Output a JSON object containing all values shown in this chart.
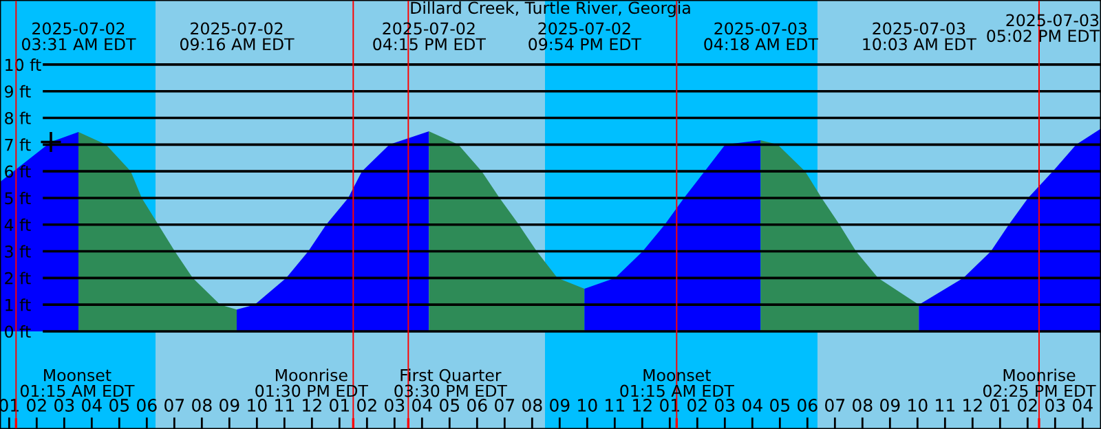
{
  "chart_data": {
    "type": "area",
    "title": "Dillard Creek, Turtle River, Georgia",
    "xlim": [
      "2025-07-02T00:40",
      "2025-07-03T16:40"
    ],
    "ylim": [
      -3.66,
      12.42
    ],
    "yticks": [
      {
        "value": 0,
        "label": "0 ft"
      },
      {
        "value": 1,
        "label": "1 ft"
      },
      {
        "value": 2,
        "label": "2 ft"
      },
      {
        "value": 3,
        "label": "3 ft"
      },
      {
        "value": 4,
        "label": "4 ft"
      },
      {
        "value": 5,
        "label": "5 ft"
      },
      {
        "value": 6,
        "label": "6 ft"
      },
      {
        "value": 7,
        "label": "7 ft"
      },
      {
        "value": 8,
        "label": "8 ft"
      },
      {
        "value": 9,
        "label": "9 ft"
      },
      {
        "value": 10,
        "label": "10 ft"
      }
    ],
    "xticks": [
      {
        "value": "2025-07-02T01:00",
        "label": "01"
      },
      {
        "value": "2025-07-02T02:00",
        "label": "02"
      },
      {
        "value": "2025-07-02T03:00",
        "label": "03"
      },
      {
        "value": "2025-07-02T04:00",
        "label": "04"
      },
      {
        "value": "2025-07-02T05:00",
        "label": "05"
      },
      {
        "value": "2025-07-02T06:00",
        "label": "06"
      },
      {
        "value": "2025-07-02T07:00",
        "label": "07"
      },
      {
        "value": "2025-07-02T08:00",
        "label": "08"
      },
      {
        "value": "2025-07-02T09:00",
        "label": "09"
      },
      {
        "value": "2025-07-02T10:00",
        "label": "10"
      },
      {
        "value": "2025-07-02T11:00",
        "label": "11"
      },
      {
        "value": "2025-07-02T12:00",
        "label": "12"
      },
      {
        "value": "2025-07-02T13:00",
        "label": "01"
      },
      {
        "value": "2025-07-02T14:00",
        "label": "02"
      },
      {
        "value": "2025-07-02T15:00",
        "label": "03"
      },
      {
        "value": "2025-07-02T16:00",
        "label": "04"
      },
      {
        "value": "2025-07-02T17:00",
        "label": "05"
      },
      {
        "value": "2025-07-02T18:00",
        "label": "06"
      },
      {
        "value": "2025-07-02T19:00",
        "label": "07"
      },
      {
        "value": "2025-07-02T20:00",
        "label": "08"
      },
      {
        "value": "2025-07-02T21:00",
        "label": "09"
      },
      {
        "value": "2025-07-02T22:00",
        "label": "10"
      },
      {
        "value": "2025-07-02T23:00",
        "label": "11"
      },
      {
        "value": "2025-07-03T00:00",
        "label": "12"
      },
      {
        "value": "2025-07-03T01:00",
        "label": "01"
      },
      {
        "value": "2025-07-03T02:00",
        "label": "02"
      },
      {
        "value": "2025-07-03T03:00",
        "label": "03"
      },
      {
        "value": "2025-07-03T04:00",
        "label": "04"
      },
      {
        "value": "2025-07-03T05:00",
        "label": "05"
      },
      {
        "value": "2025-07-03T06:00",
        "label": "06"
      },
      {
        "value": "2025-07-03T07:00",
        "label": "07"
      },
      {
        "value": "2025-07-03T08:00",
        "label": "08"
      },
      {
        "value": "2025-07-03T09:00",
        "label": "09"
      },
      {
        "value": "2025-07-03T10:00",
        "label": "10"
      },
      {
        "value": "2025-07-03T11:00",
        "label": "11"
      },
      {
        "value": "2025-07-03T12:00",
        "label": "12"
      },
      {
        "value": "2025-07-03T13:00",
        "label": "01"
      },
      {
        "value": "2025-07-03T14:00",
        "label": "02"
      },
      {
        "value": "2025-07-03T15:00",
        "label": "03"
      },
      {
        "value": "2025-07-03T16:00",
        "label": "04"
      }
    ],
    "grid": "y",
    "bands": [
      {
        "axis": "x",
        "from": "2025-07-02T00:40",
        "to": "2025-07-02T06:19",
        "color": "#00bfff"
      },
      {
        "axis": "x",
        "from": "2025-07-02T06:19",
        "to": "2025-07-02T20:28",
        "color": "#87ceeb"
      },
      {
        "axis": "x",
        "from": "2025-07-02T20:28",
        "to": "2025-07-03T06:22",
        "color": "#00bfff"
      },
      {
        "axis": "x",
        "from": "2025-07-03T06:22",
        "to": "2025-07-03T16:40",
        "color": "#87ceeb"
      }
    ],
    "series": [
      {
        "color": "#0000ff",
        "x": [
          "2025-07-02T00:40",
          "2025-07-02T02:31",
          "2025-07-02T03:31"
        ],
        "values": [
          5.6,
          7.1,
          7.47
        ]
      },
      {
        "color": "#2e8b57",
        "x": [
          "2025-07-02T03:31",
          "2025-07-02T04:31",
          "2025-07-02T05:25",
          "2025-07-02T05:49",
          "2025-07-02T06:25",
          "2025-07-02T07:01",
          "2025-07-02T07:40",
          "2025-07-02T08:40",
          "2025-07-02T09:16"
        ],
        "values": [
          7.47,
          7.0,
          6.0,
          5.0,
          4.0,
          3.0,
          2.0,
          1.0,
          0.82
        ]
      },
      {
        "color": "#0000ff",
        "x": [
          "2025-07-02T09:16",
          "2025-07-02T09:55",
          "2025-07-02T11:04",
          "2025-07-02T11:52",
          "2025-07-02T12:31",
          "2025-07-02T13:19",
          "2025-07-02T13:49",
          "2025-07-02T14:49",
          "2025-07-02T16:15"
        ],
        "values": [
          0.82,
          1.0,
          2.0,
          3.0,
          4.0,
          5.0,
          6.0,
          7.0,
          7.5
        ]
      },
      {
        "color": "#2e8b57",
        "x": [
          "2025-07-02T16:15",
          "2025-07-02T17:19",
          "2025-07-02T18:10",
          "2025-07-02T18:49",
          "2025-07-02T19:31",
          "2025-07-02T20:10",
          "2025-07-02T20:55",
          "2025-07-02T21:54"
        ],
        "values": [
          7.5,
          7.0,
          6.0,
          5.0,
          4.0,
          3.0,
          2.0,
          1.6
        ]
      },
      {
        "color": "#0000ff",
        "x": [
          "2025-07-02T21:54",
          "2025-07-02T23:01",
          "2025-07-03T00:01",
          "2025-07-03T00:49",
          "2025-07-03T01:31",
          "2025-07-03T02:16",
          "2025-07-03T03:01",
          "2025-07-03T04:18"
        ],
        "values": [
          1.6,
          2.0,
          3.0,
          4.0,
          5.0,
          6.0,
          7.0,
          7.16
        ]
      },
      {
        "color": "#2e8b57",
        "x": [
          "2025-07-03T04:18",
          "2025-07-03T04:55",
          "2025-07-03T05:55",
          "2025-07-03T06:31",
          "2025-07-03T07:10",
          "2025-07-03T07:46",
          "2025-07-03T08:34",
          "2025-07-03T10:03"
        ],
        "values": [
          7.16,
          7.0,
          6.0,
          5.0,
          4.0,
          3.0,
          2.0,
          1.0
        ]
      },
      {
        "color": "#0000ff",
        "x": [
          "2025-07-03T10:03",
          "2025-07-03T11:40",
          "2025-07-03T12:40",
          "2025-07-03T13:19",
          "2025-07-03T14:01",
          "2025-07-03T14:55",
          "2025-07-03T15:46",
          "2025-07-03T16:40"
        ],
        "values": [
          1.0,
          2.0,
          3.0,
          4.0,
          5.0,
          6.0,
          7.0,
          7.6
        ]
      },
      {
        "type": "scatter",
        "marker": "cross",
        "color": "#000000",
        "x": [
          "2025-07-02T02:31"
        ],
        "values": [
          7.1
        ]
      }
    ],
    "x2lim": [
      "2025-07-02T00:40",
      "2025-07-03T16:40"
    ],
    "x2ticks": [
      {
        "value": "2025-07-02T03:31",
        "label": "2025-07-02\n03:31 AM EDT"
      },
      {
        "value": "2025-07-02T09:16",
        "label": "2025-07-02\n09:16 AM EDT"
      },
      {
        "value": "2025-07-02T16:15",
        "label": "2025-07-02\n04:15 PM EDT"
      },
      {
        "value": "2025-07-02T21:54",
        "label": "2025-07-02\n09:54 PM EDT"
      },
      {
        "value": "2025-07-03T04:18",
        "label": "2025-07-03\n04:18 AM EDT"
      },
      {
        "value": "2025-07-03T10:03",
        "label": "2025-07-03\n10:03 AM EDT"
      }
    ],
    "annotations": [
      "2025-07-03\n05:02 PM EDT"
    ],
    "ref_lines": [
      {
        "axis": "x",
        "value": "2025-07-02T01:15",
        "label": "Moonset\n01:15 AM EDT",
        "color": "#ff0000"
      },
      {
        "axis": "x",
        "value": "2025-07-02T13:30",
        "label": "Moonrise\n01:30 PM EDT",
        "color": "#ff0000"
      },
      {
        "axis": "x",
        "value": "2025-07-02T15:30",
        "label": "First Quarter\n03:30 PM EDT",
        "color": "#ff0000"
      },
      {
        "axis": "x",
        "value": "2025-07-03T01:15",
        "label": "Moonset\n01:15 AM EDT",
        "color": "#ff0000"
      },
      {
        "axis": "x",
        "value": "2025-07-03T14:25",
        "label": "Moonrise\n02:25 PM EDT",
        "color": "#ff0000"
      }
    ]
  }
}
